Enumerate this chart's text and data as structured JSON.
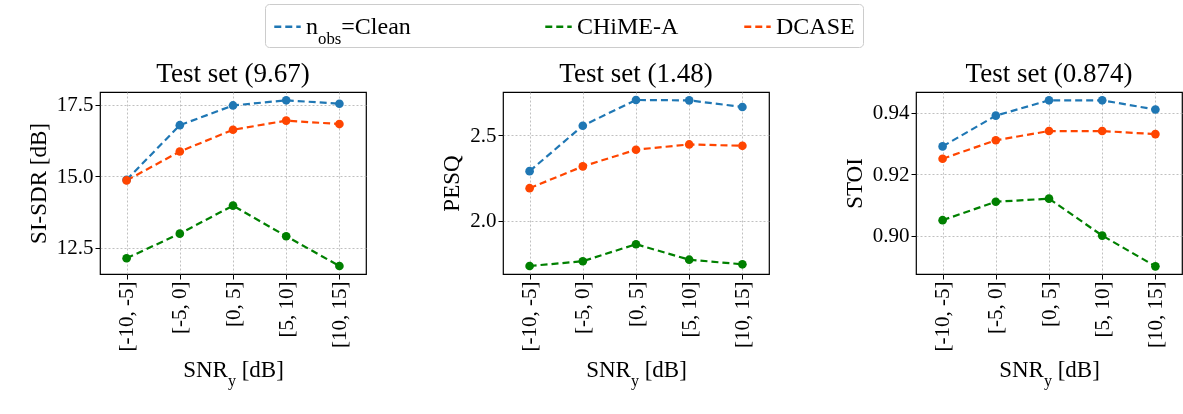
{
  "chart_data": [
    {
      "type": "line",
      "title": "Test set (9.67)",
      "xlabel": "SNR$_{y}$ [dB]",
      "ylabel": "SI-SDR [dB]",
      "categories": [
        "[-10, -5]",
        "[-5, 0]",
        "[0, 5]",
        "[5, 10]",
        "[10, 15]"
      ],
      "series": [
        {
          "color": "#1f77b4",
          "values": [
            14.87,
            16.78,
            17.47,
            17.65,
            17.53
          ]
        },
        {
          "color": "#008000",
          "values": [
            12.13,
            12.99,
            13.97,
            12.9,
            11.86
          ]
        },
        {
          "color": "#ff4500",
          "values": [
            14.85,
            15.86,
            16.62,
            16.94,
            16.82
          ]
        }
      ],
      "ylim": [
        11.58,
        17.94
      ],
      "yticks": [
        12.5,
        {
          "value": 15,
          "label": "15.0"
        },
        17.5
      ],
      "grid": true,
      "marker": "circle",
      "line_style": "dashed"
    },
    {
      "type": "line",
      "title": "Test set (1.48)",
      "xlabel": "SNR$_{y}$ [dB]",
      "ylabel": "PESQ",
      "categories": [
        "[-10, -5]",
        "[-5, 0]",
        "[0, 5]",
        "[5, 10]",
        "[10, 15]"
      ],
      "series": [
        {
          "name": "n$_{obs}$=Clean",
          "color": "#1f77b4",
          "values": [
            2.29,
            2.557,
            2.708,
            2.706,
            2.667
          ]
        },
        {
          "name": "CHiME-A",
          "color": "#008000",
          "values": [
            1.733,
            1.761,
            1.861,
            1.77,
            1.743
          ]
        },
        {
          "name": "DCASE",
          "color": "#ff4500",
          "values": [
            2.19,
            2.318,
            2.416,
            2.447,
            2.439
          ]
        }
      ],
      "ylim": [
        1.686,
        2.755
      ],
      "yticks": [
        {
          "value": 2,
          "label": "2.0"
        },
        2.5
      ],
      "grid": true,
      "legend": "top",
      "marker": "circle",
      "line_style": "dashed"
    },
    {
      "type": "line",
      "title": "Test set (0.874)",
      "xlabel": "SNR$_{y}$ [dB]",
      "ylabel": "STOI",
      "categories": [
        "[-10, -5]",
        "[-5, 0]",
        "[0, 5]",
        "[5, 10]",
        "[10, 15]"
      ],
      "series": [
        {
          "color": "#1f77b4",
          "values": [
            0.929,
            0.939,
            0.944,
            0.944,
            0.941
          ]
        },
        {
          "color": "#008000",
          "values": [
            0.905,
            0.911,
            0.912,
            0.9,
            0.89
          ]
        },
        {
          "color": "#ff4500",
          "values": [
            0.925,
            0.931,
            0.934,
            0.934,
            0.933
          ]
        }
      ],
      "ylim": [
        0.8875,
        0.9467
      ],
      "yticks": [
        {
          "value": 0.9,
          "label": "0.90"
        },
        0.92,
        0.94
      ],
      "grid": true,
      "marker": "circle",
      "line_style": "dashed"
    }
  ]
}
